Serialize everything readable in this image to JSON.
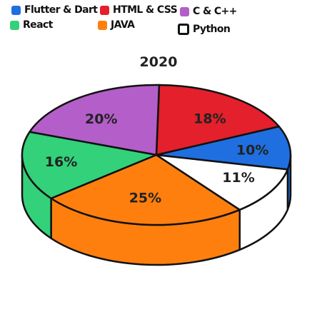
{
  "chart_data": {
    "type": "pie",
    "title": "2020",
    "legend_position": "top",
    "slices": [
      {
        "label": "Flutter & Dart",
        "value": 10,
        "display": "10%",
        "color": "#1f6fe0"
      },
      {
        "label": "HTML & CSS",
        "value": 18,
        "display": "18%",
        "color": "#e3202b"
      },
      {
        "label": "C & C++",
        "value": 20,
        "display": "20%",
        "color": "#b45ec9"
      },
      {
        "label": "React",
        "value": 16,
        "display": "16%",
        "color": "#33d17a"
      },
      {
        "label": "JAVA",
        "value": 25,
        "display": "25%",
        "color": "#ff7f0e"
      },
      {
        "label": "Python",
        "value": 11,
        "display": "11%",
        "color": "#ffffff"
      }
    ]
  }
}
